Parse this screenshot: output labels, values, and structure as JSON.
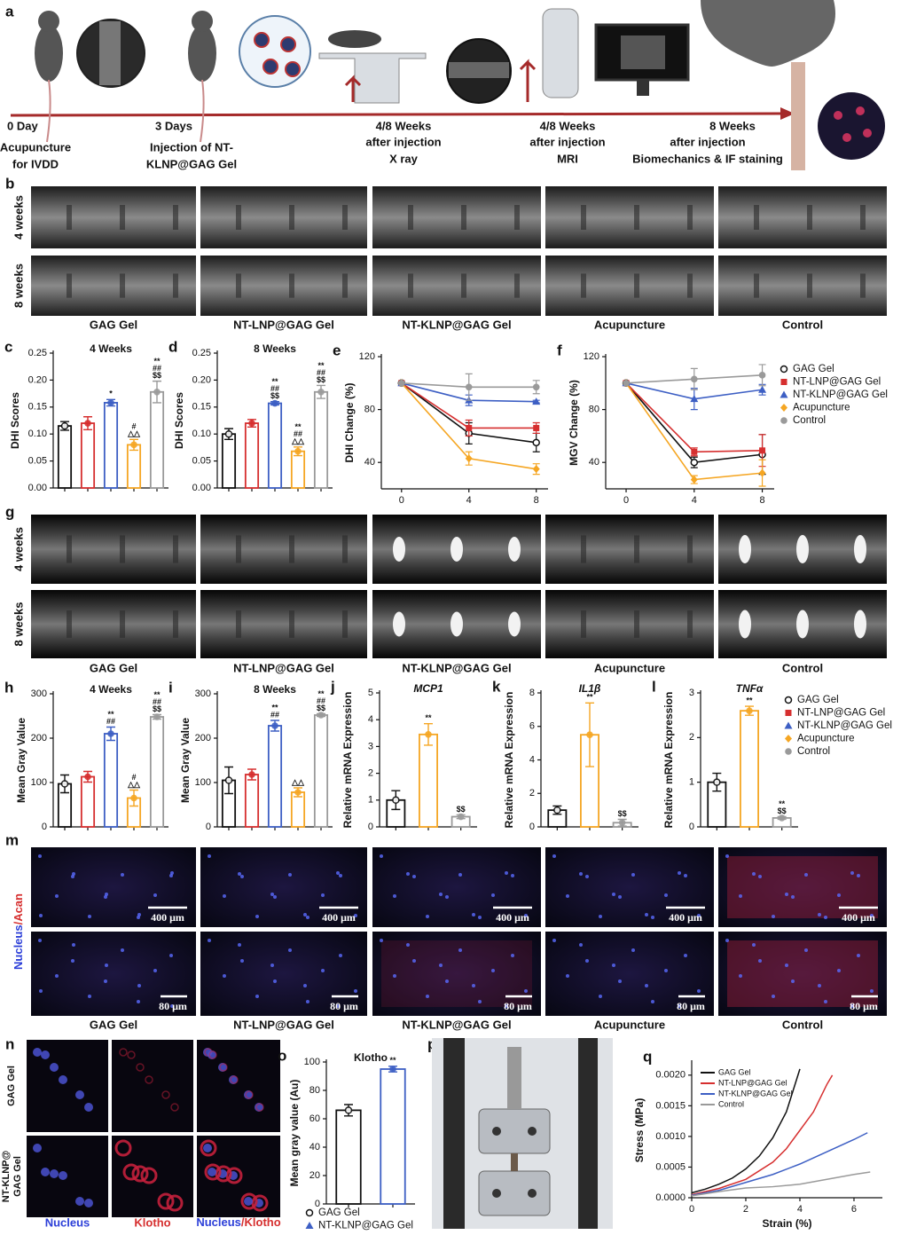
{
  "figure": {
    "panel_a": {
      "label": "a",
      "steps": [
        {
          "time": "0 Day",
          "lines": [
            "Acupuncture",
            "for IVDD"
          ]
        },
        {
          "time": "3 Days",
          "lines": [
            "Injection of NT-",
            "KLNP@GAG Gel"
          ]
        },
        {
          "time": "4/8 Weeks",
          "lines": [
            "after injection",
            "X ray"
          ]
        },
        {
          "time": "4/8 Weeks",
          "lines": [
            "after injection",
            "MRI"
          ]
        },
        {
          "time": "8 Weeks",
          "lines": [
            "after injection",
            "Biomechanics & IF staining"
          ]
        }
      ]
    },
    "groups": [
      "GAG Gel",
      "NT-LNP@GAG Gel",
      "NT-KLNP@GAG Gel",
      "Acupuncture",
      "Control"
    ],
    "panel_b": {
      "label": "b",
      "rows": [
        "4 weeks",
        "8 weeks"
      ]
    },
    "panel_g": {
      "label": "g",
      "rows": [
        "4 weeks",
        "8 weeks"
      ]
    },
    "panel_m": {
      "label": "m",
      "stain": [
        "Nucleus",
        "/Acan"
      ],
      "scale_bars": [
        "400 μm",
        "80 μm"
      ]
    },
    "panel_n": {
      "label": "n",
      "rows": [
        [
          "GAG Gel"
        ],
        [
          "NT-KLNP@",
          "GAG Gel"
        ]
      ],
      "columns": [
        "Nucleus",
        "Klotho"
      ],
      "merged": [
        "Nucleus",
        "/Klotho"
      ]
    },
    "panel_p": {
      "label": "p"
    }
  },
  "chart_data": [
    {
      "type": "bar",
      "label": "c",
      "title": "4 Weeks",
      "ylabel": "DHI Scores",
      "categories": [
        null,
        null,
        null,
        null,
        null
      ],
      "values": [
        0.115,
        0.12,
        0.158,
        0.08,
        0.178
      ],
      "errors": [
        0.008,
        0.012,
        0.006,
        0.01,
        0.02
      ],
      "colors": [
        "#111111",
        "#d62f2f",
        "#3d5fc4",
        "#f5a623",
        "#9a9a9a"
      ],
      "annotations": [
        [],
        [],
        [
          "*"
        ],
        [
          "#",
          "△△"
        ],
        [
          "**",
          "##",
          "$$"
        ]
      ],
      "ylim": [
        0,
        0.25
      ],
      "yticks": [
        {
          "value": 0,
          "label": "0.00"
        },
        0.05,
        {
          "value": 0.1,
          "label": "0.10"
        },
        0.15,
        {
          "value": 0.2,
          "label": "0.20"
        },
        0.25
      ]
    },
    {
      "type": "bar",
      "label": "d",
      "title": "8 Weeks",
      "ylabel": "DHI Scores",
      "categories": [
        null,
        null,
        null,
        null,
        null
      ],
      "values": [
        0.1,
        0.12,
        0.157,
        0.068,
        0.178
      ],
      "errors": [
        0.01,
        0.007,
        0.003,
        0.008,
        0.012
      ],
      "colors": [
        "#111111",
        "#d62f2f",
        "#3d5fc4",
        "#f5a623",
        "#9a9a9a"
      ],
      "annotations": [
        [],
        [],
        [
          "**",
          "##",
          "$$"
        ],
        [
          "**",
          "##",
          "△△"
        ],
        [
          "**",
          "##",
          "$$"
        ]
      ],
      "ylim": [
        0,
        0.25
      ],
      "yticks": [
        {
          "value": 0,
          "label": "0.00"
        },
        0.05,
        {
          "value": 0.1,
          "label": "0.10"
        },
        0.15,
        {
          "value": 0.2,
          "label": "0.20"
        },
        0.25
      ]
    },
    {
      "type": "line",
      "label": "e",
      "ylabel": "DHI Change (%)",
      "x": [
        0,
        4,
        8
      ],
      "xlim": [
        -1.2,
        8.7
      ],
      "xticks": [
        0,
        4,
        8
      ],
      "ylim": [
        20,
        120
      ],
      "yticks": [
        40,
        80,
        120
      ],
      "series": [
        {
          "color": "#111111",
          "marker": "open-circle",
          "values": [
            100,
            62,
            55
          ],
          "errors": [
            0,
            8,
            7
          ]
        },
        {
          "color": "#d62f2f",
          "marker": "square",
          "values": [
            100,
            66,
            66
          ],
          "errors": [
            0,
            6,
            4
          ]
        },
        {
          "color": "#3d5fc4",
          "marker": "triangle",
          "values": [
            100,
            87,
            86
          ],
          "errors": [
            0,
            4,
            1
          ]
        },
        {
          "color": "#f5a623",
          "marker": "diamond",
          "values": [
            100,
            43,
            35
          ],
          "errors": [
            0,
            5,
            4
          ]
        },
        {
          "color": "#9a9a9a",
          "marker": "circle",
          "values": [
            100,
            97,
            97
          ],
          "errors": [
            0,
            10,
            5
          ]
        }
      ]
    },
    {
      "type": "line",
      "label": "f",
      "ylabel": "MGV Change (%)",
      "x": [
        0,
        4,
        8
      ],
      "xlim": [
        -1.2,
        8.7
      ],
      "xticks": [
        0,
        4,
        8
      ],
      "ylim": [
        20,
        120
      ],
      "yticks": [
        40,
        80,
        120
      ],
      "series": [
        {
          "name": "GAG Gel",
          "color": "#111111",
          "marker": "open-circle",
          "values": [
            100,
            40,
            46
          ],
          "errors": [
            0,
            4,
            15
          ]
        },
        {
          "name": "NT-LNP@GAG Gel",
          "color": "#d62f2f",
          "marker": "square",
          "values": [
            100,
            48,
            49
          ],
          "errors": [
            0,
            3,
            12
          ]
        },
        {
          "name": "NT-KLNP@GAG Gel",
          "color": "#3d5fc4",
          "marker": "triangle",
          "values": [
            100,
            88,
            95
          ],
          "errors": [
            0,
            8,
            4
          ]
        },
        {
          "name": "Acupuncture",
          "color": "#f5a623",
          "marker": "diamond",
          "values": [
            100,
            27,
            32
          ],
          "errors": [
            0,
            3,
            10
          ]
        },
        {
          "name": "Control",
          "color": "#9a9a9a",
          "marker": "circle",
          "values": [
            100,
            103,
            106
          ],
          "errors": [
            0,
            8,
            8
          ]
        }
      ]
    },
    {
      "type": "bar",
      "label": "h",
      "title": "4 Weeks",
      "ylabel": "Mean Gray Value",
      "categories": [
        null,
        null,
        null,
        null,
        null
      ],
      "values": [
        97,
        113,
        210,
        65,
        248
      ],
      "errors": [
        20,
        12,
        15,
        18,
        5
      ],
      "colors": [
        "#111111",
        "#d62f2f",
        "#3d5fc4",
        "#f5a623",
        "#9a9a9a"
      ],
      "annotations": [
        [],
        [],
        [
          "**",
          "##"
        ],
        [
          "#",
          "△△"
        ],
        [
          "**",
          "##",
          "$$"
        ]
      ],
      "ylim": [
        0,
        300
      ],
      "yticks": [
        0,
        100,
        200,
        300
      ]
    },
    {
      "type": "bar",
      "label": "i",
      "title": "8 Weeks",
      "ylabel": "Mean Gray Value",
      "categories": [
        null,
        null,
        null,
        null,
        null
      ],
      "values": [
        105,
        118,
        228,
        78,
        252
      ],
      "errors": [
        30,
        12,
        12,
        10,
        3
      ],
      "colors": [
        "#111111",
        "#d62f2f",
        "#3d5fc4",
        "#f5a623",
        "#9a9a9a"
      ],
      "annotations": [
        [],
        [],
        [
          "**",
          "##"
        ],
        [
          "△△"
        ],
        [
          "**",
          "##",
          "$$"
        ]
      ],
      "ylim": [
        0,
        300
      ],
      "yticks": [
        0,
        100,
        200,
        300
      ]
    },
    {
      "type": "bar",
      "label": "j",
      "title": "MCP1",
      "title_style": "italic",
      "ylabel": "Relative mRNA Expression",
      "categories": [
        null,
        null,
        null
      ],
      "values": [
        1.0,
        3.45,
        0.38
      ],
      "errors": [
        0.35,
        0.4,
        0.07
      ],
      "colors": [
        "#111111",
        "#f5a623",
        "#9a9a9a"
      ],
      "annotations": [
        [],
        [
          "**"
        ],
        [
          "$$"
        ]
      ],
      "ylim": [
        0,
        5
      ],
      "yticks": [
        0,
        1,
        2,
        3,
        4,
        5
      ]
    },
    {
      "type": "bar",
      "label": "k",
      "title": "IL1β",
      "title_style": "italic",
      "ylabel": "Relative mRNA Expression",
      "categories": [
        null,
        null,
        null
      ],
      "values": [
        1.0,
        5.5,
        0.25
      ],
      "errors": [
        0.25,
        1.9,
        0.2
      ],
      "colors": [
        "#111111",
        "#f5a623",
        "#9a9a9a"
      ],
      "annotations": [
        [],
        [
          "**"
        ],
        [
          "$$"
        ]
      ],
      "ylim": [
        0,
        8
      ],
      "yticks": [
        0,
        2,
        4,
        6,
        8
      ]
    },
    {
      "type": "bar",
      "label": "l",
      "title": "TNFα",
      "title_style": "italic",
      "ylabel": "Relative mRNA Expression",
      "categories": [
        null,
        null,
        null
      ],
      "values": [
        1.0,
        2.6,
        0.2
      ],
      "errors": [
        0.2,
        0.1,
        0.03
      ],
      "colors": [
        "#111111",
        "#f5a623",
        "#9a9a9a"
      ],
      "annotations": [
        [],
        [
          "**"
        ],
        [
          "**",
          "$$"
        ]
      ],
      "ylim": [
        0,
        3
      ],
      "yticks": [
        0,
        1,
        2,
        3
      ],
      "legend": [
        {
          "name": "GAG Gel",
          "color": "#111111",
          "marker": "open-circle"
        },
        {
          "name": "NT-LNP@GAG Gel",
          "color": "#d62f2f",
          "marker": "square"
        },
        {
          "name": "NT-KLNP@GAG Gel",
          "color": "#3d5fc4",
          "marker": "triangle"
        },
        {
          "name": "Acupuncture",
          "color": "#f5a623",
          "marker": "diamond"
        },
        {
          "name": "Control",
          "color": "#9a9a9a",
          "marker": "circle"
        }
      ]
    },
    {
      "type": "bar",
      "label": "o",
      "title": "Klotho",
      "ylabel": "Mean gray value (Au)",
      "categories": [
        null,
        null
      ],
      "values": [
        66,
        95
      ],
      "errors": [
        4,
        2
      ],
      "colors": [
        "#111111",
        "#3d5fc4"
      ],
      "annotations": [
        [],
        [
          "**"
        ]
      ],
      "ylim": [
        0,
        100
      ],
      "yticks": [
        0,
        20,
        40,
        60,
        80,
        100
      ],
      "legend": [
        {
          "name": "GAG Gel",
          "color": "#111111",
          "marker": "open-circle"
        },
        {
          "name": "NT-KLNP@GAG Gel",
          "color": "#3d5fc4",
          "marker": "triangle"
        }
      ]
    },
    {
      "type": "line",
      "label": "q",
      "xlabel": "Strain (%)",
      "ylabel": "Stress (MPa)",
      "xlim": [
        0,
        7.05
      ],
      "xticks": [
        0,
        2,
        4,
        6
      ],
      "ylim": [
        0,
        0.0022
      ],
      "yticks": [
        {
          "value": 0,
          "label": "0.0000"
        },
        0.0005,
        {
          "value": 0.001,
          "label": "0.0010"
        },
        0.0015,
        {
          "value": 0.002,
          "label": "0.0020"
        }
      ],
      "legend_corner": "top-left",
      "series": [
        {
          "name": "GAG Gel",
          "color": "#111111",
          "x": [
            0,
            0.5,
            1,
            1.5,
            2,
            2.5,
            3,
            3.5,
            4
          ],
          "values": [
            8e-05,
            0.00014,
            0.00022,
            0.00032,
            0.00047,
            0.00068,
            0.00098,
            0.0014,
            0.0021
          ]
        },
        {
          "name": "NT-LNP@GAG Gel",
          "color": "#d62f2f",
          "x": [
            0,
            1,
            2,
            3,
            3.5,
            4,
            4.5,
            5,
            5.2
          ],
          "values": [
            5e-05,
            0.00015,
            0.0003,
            0.00058,
            0.0008,
            0.0011,
            0.0014,
            0.00185,
            0.002
          ]
        },
        {
          "name": "NT-KLNP@GAG Gel",
          "color": "#3d5fc4",
          "x": [
            0,
            1,
            2,
            3,
            4,
            5,
            6,
            6.5
          ],
          "values": [
            4e-05,
            0.00012,
            0.00025,
            0.00038,
            0.00055,
            0.00075,
            0.00095,
            0.00106
          ]
        },
        {
          "name": "Control",
          "color": "#9a9a9a",
          "x": [
            0,
            1,
            2,
            3,
            4,
            5,
            6,
            6.6
          ],
          "values": [
            3e-05,
            0.0001,
            0.00016,
            0.00018,
            0.00022,
            0.0003,
            0.00038,
            0.00042
          ]
        }
      ]
    }
  ]
}
